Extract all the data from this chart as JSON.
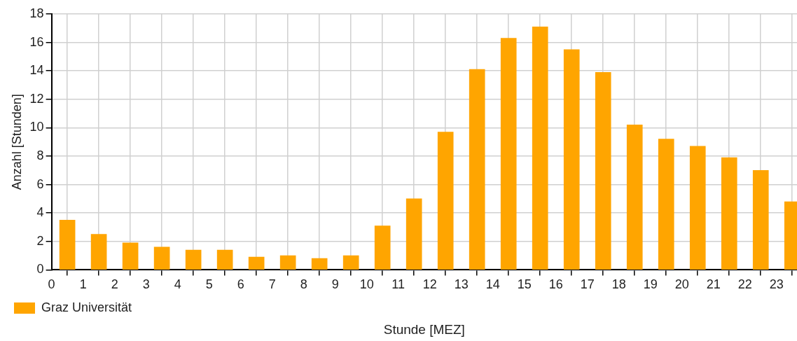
{
  "chart_data": {
    "type": "bar",
    "xlabel": "Stunde [MEZ]",
    "ylabel": "Anzahl [Stunden]",
    "x": [
      0.5,
      1.5,
      2.5,
      3.5,
      4.5,
      5.5,
      6.5,
      7.5,
      8.5,
      9.5,
      10.5,
      11.5,
      12.5,
      13.5,
      14.5,
      15.5,
      16.5,
      17.5,
      18.5,
      19.5,
      20.5,
      21.5,
      22.5,
      23.5
    ],
    "series": [
      {
        "name": "Graz Universität",
        "color": "#ffa500",
        "values": [
          3.5,
          2.5,
          1.9,
          1.6,
          1.4,
          1.4,
          0.9,
          1.0,
          0.8,
          1.0,
          3.1,
          5.0,
          9.7,
          14.1,
          16.3,
          17.1,
          15.5,
          13.9,
          10.2,
          9.2,
          8.7,
          7.9,
          7.0,
          4.8
        ]
      }
    ],
    "xlim": [
      0,
      23.65
    ],
    "xticks": [
      0,
      1,
      2,
      3,
      4,
      5,
      6,
      7,
      8,
      9,
      10,
      11,
      12,
      13,
      14,
      15,
      16,
      17,
      18,
      19,
      20,
      21,
      22,
      23
    ],
    "ylim": [
      0,
      18
    ],
    "yticks": [
      0,
      2,
      4,
      6,
      8,
      10,
      12,
      14,
      16,
      18
    ],
    "grid": true,
    "legend": "bottom left"
  }
}
